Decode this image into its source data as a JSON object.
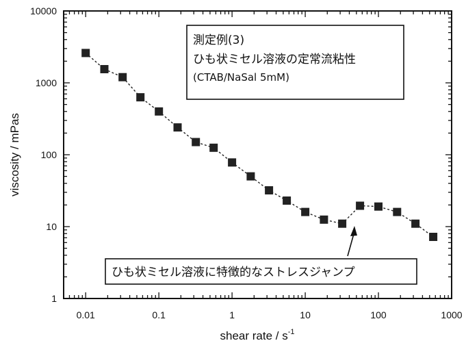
{
  "chart_data": {
    "type": "line",
    "xlabel": "shear rate / s",
    "xlabel_sup": "-1",
    "ylabel": "viscosity / mPas",
    "x_scale": "log",
    "y_scale": "log",
    "xlim": [
      0.005,
      1000
    ],
    "ylim": [
      1,
      10000
    ],
    "x_ticks": [
      0.01,
      0.1,
      1,
      10,
      100,
      1000
    ],
    "x_tick_labels": [
      "0.01",
      "0.1",
      "1",
      "10",
      "100",
      "1000"
    ],
    "y_ticks": [
      1,
      10,
      100,
      1000,
      10000
    ],
    "y_tick_labels": [
      "1",
      "10",
      "100",
      "1000",
      "10000"
    ],
    "grid": false,
    "marker": "square",
    "series_color": "#222222",
    "series": [
      {
        "x": [
          0.01,
          0.018,
          0.032,
          0.056,
          0.1,
          0.18,
          0.32,
          0.56,
          1.0,
          1.8,
          3.2,
          5.6,
          10,
          18,
          32,
          56,
          100,
          180,
          320,
          560
        ],
        "y": [
          2600,
          1550,
          1200,
          630,
          400,
          240,
          150,
          125,
          78,
          50,
          32,
          23,
          16,
          12.5,
          11,
          19.5,
          19,
          16,
          11,
          7.2
        ]
      }
    ],
    "annotation_box": {
      "line1": "測定例(3)",
      "line2": "ひも状ミセル溶液の定常流粘性",
      "line3": "(CTAB/NaSal 5mM)"
    },
    "callout": {
      "text": "ひも状ミセル溶液に特徴的なストレスジャンプ",
      "target_x": 56,
      "target_y": 15
    }
  }
}
